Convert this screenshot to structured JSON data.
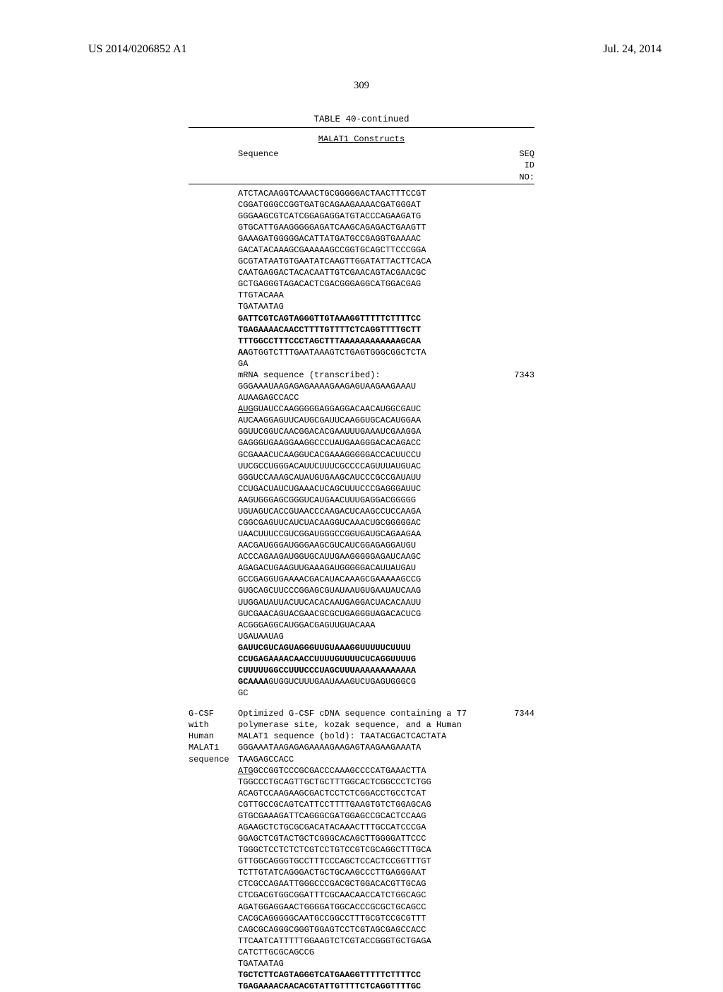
{
  "header": {
    "left": "US 2014/0206852 A1",
    "right": "Jul. 24, 2014",
    "page_number": "309"
  },
  "table": {
    "title": "TABLE 40-continued",
    "subtitle": "MALAT1 Constructs",
    "col_headers": {
      "sequence": "Sequence",
      "seqid": "SEQ\nID\nNO:"
    }
  },
  "block1": {
    "lines": [
      "ATCTACAAGGTCAAACTGCGGGGGACTAACTTTCCGT",
      "CGGATGGGCCGGTGATGCAGAAGAAAACGATGGGAT",
      "GGGAAGCGTCATCGGAGAGGATGTACCCAGAAGATG",
      "GTGCATTGAAGGGGGAGATCAAGCAGAGACTGAAGTT",
      "GAAAGATGGGGGACATTATGATGCCGAGGTGAAAAC",
      "GACATACAAAGCGAAAAAGCCGGTGCAGCTTCCCGGA",
      "GCGTATAATGTGAATATCAAGTTGGATATTACTTCACA",
      "CAATGAGGACTACACAATTGTCGAACAGTACGAACGC",
      "GCTGAGGGTAGACACTCGACGGGAGGCATGGACGAG",
      "TTGTACAAA",
      "TGATAATAG"
    ],
    "bold_lines": [
      "GATTCGTCAGTAGGGTTGTAAAGGTTTTTCTTTTCC",
      "TGAGAAAACAACCTTTTGTTTTCTCAGGTTTTGCTT",
      "TTTGGCCTTTCCCTAGCTTTAAAAAAAAAAAAGCAA"
    ],
    "tail": [
      "**AA**GTGGTCTTTGAATAAAGTCTGAGTGGGCGGCTCTA",
      "GA"
    ]
  },
  "block2": {
    "intro": "mRNA sequence (transcribed):",
    "seqno": "7343",
    "lines": [
      "GGGAAAUAAGAGAGAAAAGAAGAGUAAGAAGAAAU",
      "AUAAGAGCCACC"
    ],
    "start_line": "AUGGUAUCCAAGGGGGAGGAGGACAACAUGGCGAUC",
    "more_lines": [
      "AUCAAGGAGUUCAUGCGAUUCAAGGUGCACAUGGAA",
      "GGUUCGGUCAACGGACACGAAUUUGAAAUCGAAGGA",
      "GAGGGUGAAGGAAGGCCCUAUGAAGGGACACAGACC",
      "GCGAAACUCAAGGUCACGAAAGGGGGACCACUUCCU",
      "UUCGCCUGGGACAUUCUUUCGCCCCAGUUUAUGUAC",
      "GGGUCCAAAGCAUAUGUGAAGCAUCCCGCCGAUAUU",
      "CCUGACUAUCUGAAACUCAGCUUUCCCGAGGGAUUC",
      "AAGUGGGAGCGGGUCAUGAACUUUGAGGACGGGGG",
      "UGUAGUCACCGUAACCCAAGACUCAAGCCUCCAAGA",
      "CGGCGAGUUCAUCUACAAGGUCAAACUGCGGGGGAC",
      "UAACUUUCCGUCGGAUGGGCCGGUGAUGCAGAAGAA",
      "AACGAUGGGAUGGGAAGCGUCAUCGGAGAGGAUGU",
      "ACCCAGAAGAUGGUGCAUUGAAGGGGGAGAUCAAGC",
      "AGAGACUGAAGUUGAAAGAUGGGGGACAUUAUGAU",
      "GCCGAGGUGAAAACGACAUACAAAGCGAAAAAGCCG",
      "GUGCAGCUUCCCGGAGCGUAUAAUGUGAAUAUCAAG",
      "UUGGAUAUUACUUCACACAAUGAGGACUACACAAUU",
      "GUCGAACAGUACGAACGCGCUGAGGGUAGACACUCG",
      "ACGGGAGGCAUGGACGAGUUGUACAAA",
      "UGAUAAUAG"
    ],
    "bold_lines": [
      "GAUUCGUCAGUAGGGUUGUAAAGGUUUUUCUUUU",
      "CCUGAGAAAACAACCUUUUGUUUUCUCAGGUUUUG",
      "CUUUUUGGCCUUUCCCUAGCUUUAAAAAAAAAAAA"
    ],
    "tail": "**GCAAAA**GUGGUCUUUGAAUAAAGUCUGAGUGGGCG\nGC"
  },
  "block3": {
    "label_lines": [
      "G-CSF",
      "with",
      "Human",
      "MALAT1",
      "sequence"
    ],
    "intro_lines": [
      "Optimized G-CSF cDNA sequence containing a T7",
      "polymerase site, kozak sequence, and a Human",
      "MALAT1 sequence (bold): TAATACGACTCACTATA",
      "GGGAAATAAGAGAGAAAAGAAGAGTAAGAAGAAATA",
      "TAAGAGCCACC"
    ],
    "seqno": "7344",
    "start_line": "ATGGCCGGTCCCGCGACCCAAAGCCCCATGAAACTTA",
    "more_lines": [
      "TGGCCCTGCAGTTGCTGCTTTGGCACTCGGCCCTCTGG",
      "ACAGTCCAAGAAGCGACTCCTCTCGGACCTGCCTCAT",
      "CGTTGCCGCAGTCATTCCTTTTGAAGTGTCTGGAGCAG",
      "GTGCGAAAGATTCAGGGCGATGGAGCCGCACTCCAAG",
      "AGAAGCTCTGCGCGACATACAAACTTTGCCATCCCGA",
      "GGAGCTCGTACTGCTCGGGCACAGCTTGGGGATTCCC",
      "TGGGCTCCTCTCTCGTCCTGTCCGTCGCAGGCTTTGCA",
      "GTTGGCAGGGTGCCTTTCCCAGCTCCACTCCGGTTTGT",
      "TCTTGTATCAGGGACTGCTGCAAGCCCTTGAGGGAAT",
      "CTCGCCAGAATTGGGCCCGACGCTGGACACGTTGCAG",
      "CTCGACGTGGCGGATTTCGCAACAACCATCTGGCAGC",
      "AGATGGAGGAACTGGGGATGGCACCCGCGCTGCAGCC",
      "CACGCAGGGGGCAATGCCGGCCTTTGCGTCCGCGTTT",
      "CAGCGCAGGGCGGGTGGAGTCCTCGTAGCGAGCCACC",
      "TTCAATCATTTTTGGAAGTCTCGTACCGGGTGCTGAGA",
      "CATCTTGCGCAGCCG",
      "TGATAATAG"
    ],
    "bold_lines": [
      "TGCTCTTCAGTAGGGTCATGAAGGTTTTTCTTTTCC",
      "TGAGAAAACAACACGTATTGTTTTCTCAGGTTTTGC"
    ]
  },
  "styling": {
    "font_family_body": "Times New Roman",
    "font_family_mono": "Courier New",
    "header_fontsize": 16,
    "page_number_fontsize": 14.5,
    "mono_fontsize": 12,
    "line_height": 1.34,
    "content_width": 490,
    "label_col_width": 70,
    "seqno_col_width": 45,
    "rule_color": "#000000",
    "background_color": "#ffffff",
    "text_color": "#000000"
  }
}
